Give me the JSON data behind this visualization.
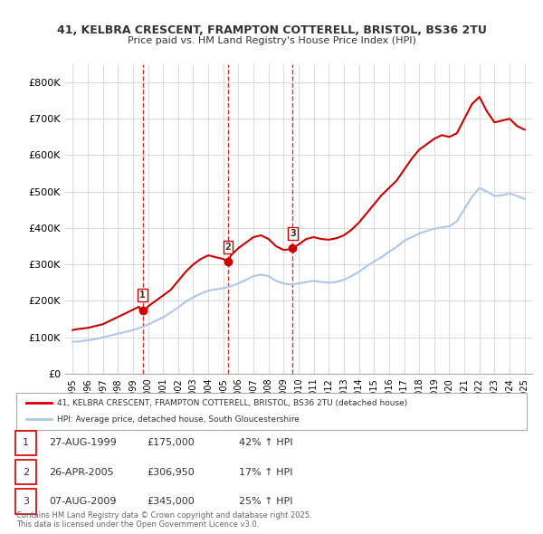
{
  "title_line1": "41, KELBRA CRESCENT, FRAMPTON COTTERELL, BRISTOL, BS36 2TU",
  "title_line2": "Price paid vs. HM Land Registry's House Price Index (HPI)",
  "legend_red": "41, KELBRA CRESCENT, FRAMPTON COTTERELL, BRISTOL, BS36 2TU (detached house)",
  "legend_blue": "HPI: Average price, detached house, South Gloucestershire",
  "footer": "Contains HM Land Registry data © Crown copyright and database right 2025.\nThis data is licensed under the Open Government Licence v3.0.",
  "transactions": [
    {
      "num": 1,
      "date": "27-AUG-1999",
      "price": "£175,000",
      "change": "42% ↑ HPI",
      "year": 1999.65
    },
    {
      "num": 2,
      "date": "26-APR-2005",
      "price": "£306,950",
      "change": "17% ↑ HPI",
      "year": 2005.32
    },
    {
      "num": 3,
      "date": "07-AUG-2009",
      "price": "£345,000",
      "change": "25% ↑ HPI",
      "year": 2009.6
    }
  ],
  "hpi_color": "#aec6e8",
  "price_color": "#cc0000",
  "background_color": "#ffffff",
  "grid_color": "#dddddd",
  "ylim": [
    0,
    850000
  ],
  "yticks": [
    0,
    100000,
    200000,
    300000,
    400000,
    500000,
    600000,
    700000,
    800000
  ],
  "ytick_labels": [
    "£0",
    "£100K",
    "£200K",
    "£300K",
    "£400K",
    "£500K",
    "£600K",
    "£700K",
    "£800K"
  ],
  "xlim_start": 1994.5,
  "xlim_end": 2025.5,
  "red_line": {
    "x": [
      1995.0,
      1995.1,
      1995.2,
      1995.3,
      1995.4,
      1995.5,
      1995.6,
      1995.7,
      1995.8,
      1995.9,
      1996.0,
      1996.1,
      1996.2,
      1996.3,
      1996.4,
      1996.5,
      1996.6,
      1996.7,
      1996.8,
      1996.9,
      1997.0,
      1997.1,
      1997.2,
      1997.3,
      1997.4,
      1997.5,
      1997.6,
      1997.7,
      1997.8,
      1997.9,
      1998.0,
      1998.1,
      1998.2,
      1998.3,
      1998.4,
      1998.5,
      1998.6,
      1998.7,
      1998.8,
      1998.9,
      1999.0,
      1999.1,
      1999.2,
      1999.3,
      1999.4,
      1999.5,
      1999.6,
      1999.7,
      1999.65,
      1999.8,
      1999.9,
      2000.0,
      2000.5,
      2001.0,
      2001.5,
      2002.0,
      2002.5,
      2003.0,
      2003.5,
      2004.0,
      2004.5,
      2005.0,
      2005.32,
      2005.5,
      2006.0,
      2006.5,
      2007.0,
      2007.5,
      2008.0,
      2008.5,
      2009.0,
      2009.5,
      2009.6,
      2010.0,
      2010.5,
      2011.0,
      2011.5,
      2012.0,
      2012.5,
      2013.0,
      2013.5,
      2014.0,
      2014.5,
      2015.0,
      2015.5,
      2016.0,
      2016.5,
      2017.0,
      2017.5,
      2018.0,
      2018.5,
      2019.0,
      2019.5,
      2020.0,
      2020.5,
      2021.0,
      2021.5,
      2022.0,
      2022.5,
      2023.0,
      2023.5,
      2024.0,
      2024.5,
      2025.0
    ],
    "y": [
      120000,
      121000,
      122000,
      122500,
      123000,
      123500,
      124000,
      124500,
      125000,
      125500,
      126000,
      127000,
      128000,
      129000,
      130000,
      131000,
      132000,
      133000,
      134000,
      135000,
      136000,
      138000,
      140000,
      142000,
      144000,
      146000,
      148000,
      150000,
      152000,
      154000,
      156000,
      158000,
      160000,
      162000,
      164000,
      166000,
      168000,
      170000,
      172000,
      174000,
      176000,
      178000,
      180000,
      182000,
      184000,
      174000,
      174500,
      175000,
      175000,
      176000,
      178000,
      185000,
      200000,
      215000,
      230000,
      255000,
      280000,
      300000,
      315000,
      325000,
      320000,
      315000,
      306950,
      325000,
      345000,
      360000,
      375000,
      380000,
      370000,
      350000,
      340000,
      342000,
      345000,
      355000,
      370000,
      375000,
      370000,
      368000,
      372000,
      380000,
      395000,
      415000,
      440000,
      465000,
      490000,
      510000,
      530000,
      560000,
      590000,
      615000,
      630000,
      645000,
      655000,
      650000,
      660000,
      700000,
      740000,
      760000,
      720000,
      690000,
      695000,
      700000,
      680000,
      670000
    ]
  },
  "blue_line": {
    "x": [
      1995.0,
      1995.5,
      1996.0,
      1996.5,
      1997.0,
      1997.5,
      1998.0,
      1998.5,
      1999.0,
      1999.5,
      2000.0,
      2000.5,
      2001.0,
      2001.5,
      2002.0,
      2002.5,
      2003.0,
      2003.5,
      2004.0,
      2004.5,
      2005.0,
      2005.5,
      2006.0,
      2006.5,
      2007.0,
      2007.5,
      2008.0,
      2008.5,
      2009.0,
      2009.5,
      2010.0,
      2010.5,
      2011.0,
      2011.5,
      2012.0,
      2012.5,
      2013.0,
      2013.5,
      2014.0,
      2014.5,
      2015.0,
      2015.5,
      2016.0,
      2016.5,
      2017.0,
      2017.5,
      2018.0,
      2018.5,
      2019.0,
      2019.5,
      2020.0,
      2020.5,
      2021.0,
      2021.5,
      2022.0,
      2022.5,
      2023.0,
      2023.5,
      2024.0,
      2024.5,
      2025.0
    ],
    "y": [
      88000,
      89000,
      92000,
      95000,
      100000,
      105000,
      110000,
      115000,
      120000,
      127000,
      135000,
      145000,
      155000,
      168000,
      182000,
      198000,
      210000,
      220000,
      228000,
      232000,
      235000,
      240000,
      248000,
      258000,
      268000,
      272000,
      268000,
      255000,
      248000,
      245000,
      248000,
      252000,
      255000,
      252000,
      250000,
      252000,
      258000,
      268000,
      280000,
      295000,
      308000,
      320000,
      335000,
      348000,
      365000,
      375000,
      385000,
      392000,
      398000,
      402000,
      405000,
      418000,
      452000,
      485000,
      510000,
      500000,
      488000,
      490000,
      495000,
      488000,
      480000
    ]
  }
}
